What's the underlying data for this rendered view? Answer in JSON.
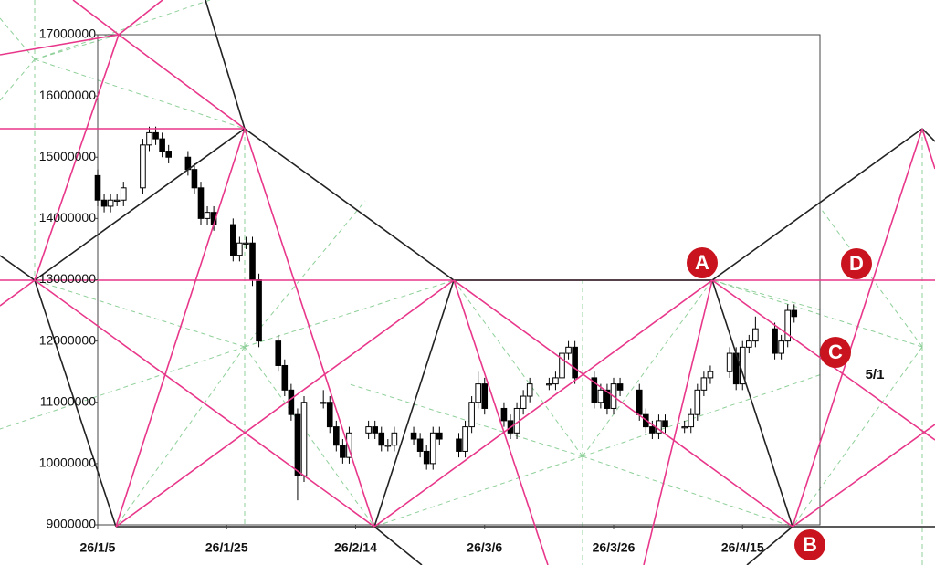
{
  "chart_data": {
    "type": "candlestick",
    "x": [
      "26/1/5",
      "26/1/6",
      "26/1/7",
      "26/1/8",
      "26/1/9",
      "26/1/12",
      "26/1/13",
      "26/1/14",
      "26/1/15",
      "26/1/16",
      "26/1/19",
      "26/1/20",
      "26/1/21",
      "26/1/22",
      "26/1/23",
      "26/1/26",
      "26/1/27",
      "26/1/28",
      "26/1/29",
      "26/1/30",
      "26/2/2",
      "26/2/3",
      "26/2/4",
      "26/2/5",
      "26/2/6",
      "26/2/9",
      "26/2/10",
      "26/2/11",
      "26/2/12",
      "26/2/13",
      "26/2/16",
      "26/2/17",
      "26/2/18",
      "26/2/19",
      "26/2/20",
      "26/2/23",
      "26/2/24",
      "26/2/25",
      "26/2/26",
      "26/2/27",
      "26/3/2",
      "26/3/3",
      "26/3/4",
      "26/3/5",
      "26/3/6",
      "26/3/9",
      "26/3/10",
      "26/3/11",
      "26/3/12",
      "26/3/13",
      "26/3/16",
      "26/3/17",
      "26/3/18",
      "26/3/19",
      "26/3/20",
      "26/3/23",
      "26/3/24",
      "26/3/25",
      "26/3/26",
      "26/3/27",
      "26/3/30",
      "26/3/31",
      "26/4/1",
      "26/4/2",
      "26/4/3",
      "26/4/6",
      "26/4/7",
      "26/4/8",
      "26/4/9",
      "26/4/10",
      "26/4/13",
      "26/4/14",
      "26/4/15",
      "26/4/16",
      "26/4/17",
      "26/4/20",
      "26/4/21",
      "26/4/22",
      "26/4/23"
    ],
    "open": [
      14700000,
      14300000,
      14200000,
      14300000,
      14300000,
      14500000,
      15200000,
      15400000,
      15300000,
      15100000,
      15000000,
      14800000,
      14500000,
      14000000,
      14100000,
      13900000,
      13400000,
      13600000,
      13600000,
      13000000,
      12000000,
      11600000,
      11200000,
      10800000,
      9800000,
      11000000,
      11000000,
      10600000,
      10300000,
      10100000,
      10500000,
      10600000,
      10500000,
      10300000,
      10300000,
      10500000,
      10400000,
      10200000,
      10000000,
      10500000,
      10400000,
      10200000,
      10600000,
      11000000,
      11300000,
      10900000,
      10700000,
      10500000,
      10900000,
      11100000,
      11300000,
      11300000,
      11400000,
      11800000,
      11900000,
      11400000,
      11000000,
      11200000,
      10900000,
      11300000,
      11200000,
      10800000,
      10600000,
      10500000,
      10700000,
      10600000,
      10600000,
      10800000,
      11200000,
      11400000,
      11500000,
      11800000,
      11300000,
      11900000,
      12000000,
      12200000,
      11800000,
      12000000,
      12500000
    ],
    "high": [
      14800000,
      14400000,
      14400000,
      14400000,
      14600000,
      15300000,
      15500000,
      15500000,
      15400000,
      15200000,
      15100000,
      14900000,
      14600000,
      14200000,
      14200000,
      14000000,
      13700000,
      13700000,
      13700000,
      13100000,
      12100000,
      11700000,
      11300000,
      10900000,
      11100000,
      11200000,
      11100000,
      10700000,
      10400000,
      10600000,
      10700000,
      10700000,
      10600000,
      10400000,
      10600000,
      10600000,
      10500000,
      10300000,
      10600000,
      10600000,
      10500000,
      10700000,
      11100000,
      11500000,
      11400000,
      11000000,
      10800000,
      11000000,
      11200000,
      11400000,
      11400000,
      11500000,
      11900000,
      12000000,
      12000000,
      11500000,
      11300000,
      11300000,
      11400000,
      11400000,
      11300000,
      10900000,
      10700000,
      10800000,
      10800000,
      10700000,
      10900000,
      11300000,
      11500000,
      11600000,
      11900000,
      11900000,
      12000000,
      12100000,
      12400000,
      12300000,
      12100000,
      12600000,
      12600000
    ],
    "low": [
      14200000,
      14100000,
      14100000,
      14200000,
      14200000,
      14400000,
      15100000,
      15200000,
      15000000,
      14900000,
      14700000,
      14400000,
      13900000,
      13900000,
      13800000,
      13300000,
      13300000,
      13500000,
      12900000,
      11900000,
      11500000,
      11100000,
      10700000,
      9400000,
      9700000,
      10900000,
      10500000,
      10200000,
      10000000,
      10000000,
      10400000,
      10400000,
      10200000,
      10200000,
      10200000,
      10300000,
      10100000,
      9900000,
      9900000,
      10300000,
      10100000,
      10100000,
      10500000,
      10900000,
      10800000,
      10600000,
      10400000,
      10400000,
      10800000,
      11000000,
      11200000,
      11200000,
      11300000,
      11700000,
      11300000,
      10900000,
      10900000,
      10800000,
      10800000,
      11100000,
      10700000,
      10500000,
      10400000,
      10400000,
      10500000,
      10500000,
      10500000,
      10700000,
      11100000,
      11300000,
      11400000,
      11200000,
      11200000,
      11800000,
      11900000,
      11700000,
      11700000,
      11900000,
      12300000
    ],
    "close": [
      14300000,
      14200000,
      14300000,
      14300000,
      14500000,
      15200000,
      15400000,
      15300000,
      15100000,
      15000000,
      14800000,
      14500000,
      14000000,
      14100000,
      13900000,
      13400000,
      13600000,
      13600000,
      13000000,
      12000000,
      11600000,
      11200000,
      10800000,
      9800000,
      11000000,
      11000000,
      10600000,
      10300000,
      10100000,
      10500000,
      10600000,
      10500000,
      10300000,
      10300000,
      10500000,
      10400000,
      10200000,
      10000000,
      10500000,
      10400000,
      10200000,
      10600000,
      11000000,
      11300000,
      10900000,
      10700000,
      10500000,
      10900000,
      11100000,
      11300000,
      11300000,
      11400000,
      11800000,
      11900000,
      11400000,
      11000000,
      11200000,
      10900000,
      11300000,
      11200000,
      10800000,
      10600000,
      10500000,
      10700000,
      10600000,
      10600000,
      10800000,
      11200000,
      11400000,
      11500000,
      11800000,
      11300000,
      11900000,
      12000000,
      12200000,
      11800000,
      12000000,
      12500000,
      12400000
    ],
    "up_color": "#ffffff",
    "down_color": "#000000",
    "xlim": [
      "26/1/5",
      "26/4/27"
    ],
    "xticks": [
      "26/1/5",
      "26/1/25",
      "26/2/14",
      "26/3/6",
      "26/3/26",
      "26/4/15"
    ],
    "ylim": [
      9000000,
      17000000
    ],
    "yticks": [
      9000000,
      10000000,
      11000000,
      12000000,
      13000000,
      14000000,
      15000000,
      16000000,
      17000000
    ],
    "annotations": [
      "A",
      "B",
      "C",
      "D",
      "5/1"
    ]
  }
}
